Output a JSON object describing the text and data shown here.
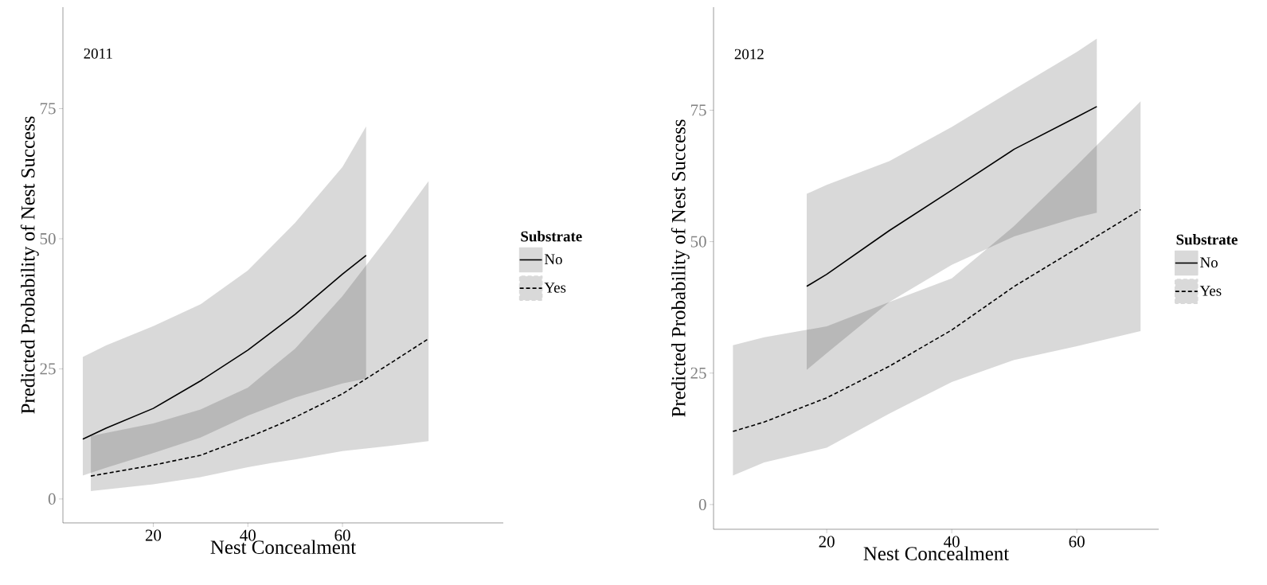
{
  "chart_data": [
    {
      "type": "line",
      "title": "2011",
      "xlabel": "Nest Concealment",
      "ylabel": "Predicted Probability of Nest Success",
      "legend_title": "Substrate",
      "legend": "right",
      "xlim": [
        0.9,
        94
      ],
      "ylim": [
        -4.6,
        94.5
      ],
      "xticks": [
        20,
        40,
        60
      ],
      "yticks": [
        0,
        25,
        50,
        75
      ],
      "series": [
        {
          "name": "No",
          "color": "#000000",
          "line_style": "solid",
          "x": [
            5.1,
            10,
            20,
            30,
            40,
            50,
            60,
            65
          ],
          "values": [
            11.5,
            13.6,
            17.4,
            22.7,
            28.6,
            35.5,
            43.2,
            46.8
          ],
          "lower": [
            4.5,
            6.0,
            8.8,
            11.8,
            16.0,
            19.5,
            22.2,
            23.1
          ],
          "upper": [
            27.3,
            29.5,
            33.2,
            37.4,
            43.9,
            53.1,
            63.8,
            71.6
          ]
        },
        {
          "name": "Yes",
          "color": "#000000",
          "line_style": "dashed",
          "x": [
            6.8,
            20,
            30,
            40,
            45,
            50,
            60,
            70,
            78.2
          ],
          "values": [
            4.4,
            6.5,
            8.4,
            11.8,
            13.7,
            15.7,
            20.2,
            26.0,
            30.8
          ],
          "lower": [
            1.5,
            2.8,
            4.2,
            6.1,
            6.9,
            7.6,
            9.2,
            10.2,
            11.1
          ],
          "upper": [
            12.1,
            14.5,
            17.2,
            21.4,
            25.2,
            28.9,
            39.0,
            50.8,
            61.1
          ]
        }
      ]
    },
    {
      "type": "line",
      "title": "2012",
      "xlabel": "Nest Concealment",
      "ylabel": "Predicted Probability of Nest Success",
      "legend_title": "Substrate",
      "legend": "right",
      "xlim": [
        1.9,
        73.1
      ],
      "ylim": [
        -4.7,
        94.6
      ],
      "xticks": [
        20,
        40,
        60
      ],
      "yticks": [
        0,
        25,
        50,
        75
      ],
      "series": [
        {
          "name": "No",
          "color": "#000000",
          "line_style": "solid",
          "x": [
            16.8,
            20,
            30,
            40,
            50,
            60,
            63.2
          ],
          "values": [
            41.5,
            43.8,
            52.1,
            59.8,
            67.6,
            73.7,
            75.7
          ],
          "lower": [
            25.6,
            28.8,
            38.5,
            45.6,
            51.0,
            54.6,
            55.5
          ],
          "upper": [
            59.1,
            60.8,
            65.3,
            71.8,
            79.0,
            86.1,
            88.6
          ]
        },
        {
          "name": "Yes",
          "color": "#000000",
          "line_style": "dashed",
          "x": [
            5.0,
            10,
            20,
            30,
            40,
            50,
            60,
            70.2
          ],
          "values": [
            13.9,
            15.7,
            20.3,
            26.3,
            33.2,
            41.5,
            48.7,
            56.1
          ],
          "lower": [
            5.5,
            8.0,
            10.8,
            17.3,
            23.3,
            27.5,
            30.1,
            33.0
          ],
          "upper": [
            30.3,
            31.8,
            33.9,
            38.5,
            43.0,
            53.0,
            64.5,
            76.7
          ]
        }
      ]
    }
  ]
}
